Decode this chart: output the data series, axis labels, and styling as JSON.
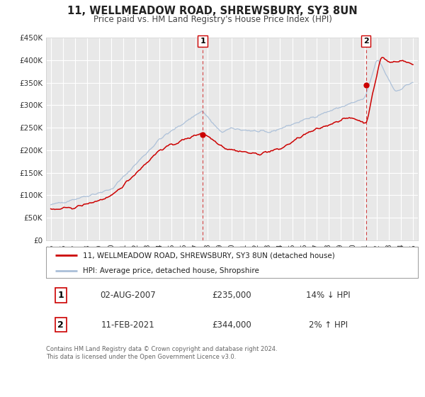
{
  "title": "11, WELLMEADOW ROAD, SHREWSBURY, SY3 8UN",
  "subtitle": "Price paid vs. HM Land Registry's House Price Index (HPI)",
  "background_color": "#ffffff",
  "plot_bg_color": "#e8e8e8",
  "grid_color": "#ffffff",
  "hpi_color": "#aabfd8",
  "house_color": "#cc0000",
  "ylim": [
    0,
    450000
  ],
  "yticks": [
    0,
    50000,
    100000,
    150000,
    200000,
    250000,
    300000,
    350000,
    400000,
    450000
  ],
  "ytick_labels": [
    "£0",
    "£50K",
    "£100K",
    "£150K",
    "£200K",
    "£250K",
    "£300K",
    "£350K",
    "£400K",
    "£450K"
  ],
  "xlim_start": 1994.6,
  "xlim_end": 2025.4,
  "xticks": [
    1995,
    1996,
    1997,
    1998,
    1999,
    2000,
    2001,
    2002,
    2003,
    2004,
    2005,
    2006,
    2007,
    2008,
    2009,
    2010,
    2011,
    2012,
    2013,
    2014,
    2015,
    2016,
    2017,
    2018,
    2019,
    2020,
    2021,
    2022,
    2023,
    2024,
    2025
  ],
  "point1_x": 2007.583,
  "point1_y": 235000,
  "point1_label": "1",
  "point1_date": "02-AUG-2007",
  "point1_price": "£235,000",
  "point1_hpi": "14% ↓ HPI",
  "point2_x": 2021.12,
  "point2_y": 344000,
  "point2_label": "2",
  "point2_date": "11-FEB-2021",
  "point2_price": "£344,000",
  "point2_hpi": "2% ↑ HPI",
  "legend_line1": "11, WELLMEADOW ROAD, SHREWSBURY, SY3 8UN (detached house)",
  "legend_line2": "HPI: Average price, detached house, Shropshire",
  "footnote": "Contains HM Land Registry data © Crown copyright and database right 2024.\nThis data is licensed under the Open Government Licence v3.0."
}
